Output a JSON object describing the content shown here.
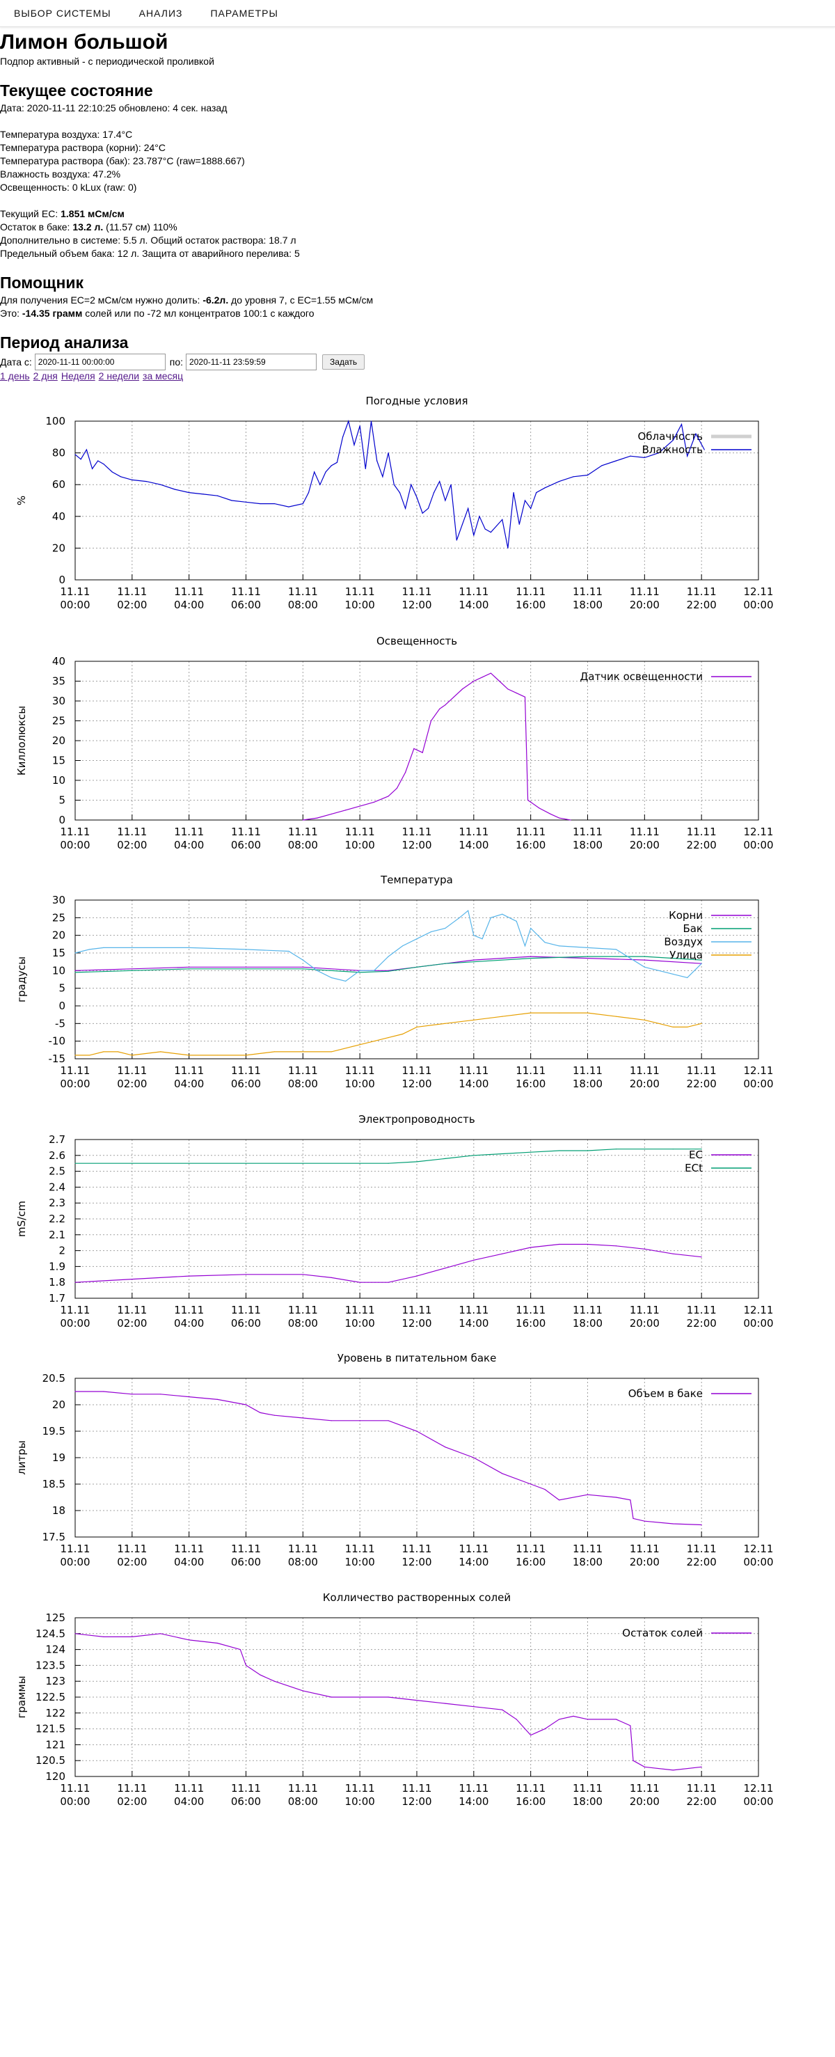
{
  "nav": {
    "items": [
      "ВЫБОР СИСТЕМЫ",
      "АНАЛИЗ",
      "ПАРАМЕТРЫ"
    ]
  },
  "header": {
    "title": "Лимон большой",
    "subtitle": "Подпор активный - с периодической проливкой"
  },
  "status": {
    "heading": "Текущее состояние",
    "date_line": "Дата: 2020-11-11 22:10:25 обновлено: 4 сек. назад",
    "air_temp": "Температура воздуха: 17.4°C",
    "root_temp": "Температура раствора (корни): 24°C",
    "tank_temp": "Температура раствора (бак): 23.787°C (raw=1888.667)",
    "humidity": "Влажность воздуха: 47.2%",
    "light": "Освещенность: 0 kLux (raw: 0)",
    "ec_prefix": "Текущий EC: ",
    "ec_value": "1.851 мСм/см",
    "tank_prefix": "Остаток в баке: ",
    "tank_value": "13.2 л.",
    "tank_suffix": " (11.57 см) 110%",
    "extra_line": "Дополнительно в системе: 5.5 л. Общий остаток раствора: 18.7 л",
    "max_line": "Предельный объем бака: 12 л. Защита от аварийного перелива: 5"
  },
  "helper": {
    "heading": "Помощник",
    "line1_prefix": "Для получения EC=2 мСм/см нужно долить: ",
    "line1_value": "-6.2л.",
    "line1_suffix": " до уровня 7, с EC=1.55 мСм/см",
    "line2_prefix": "Это: ",
    "line2_value": "-14.35 грамм",
    "line2_suffix": " солей или по -72 мл концентратов 100:1 с каждого"
  },
  "period": {
    "heading": "Период анализа",
    "from_label": "Дата с:",
    "from_value": "2020-11-11 00:00:00",
    "to_label": "по:",
    "to_value": "2020-11-11 23:59:59",
    "submit_label": "Задать",
    "links": [
      "1 день",
      "2 дня",
      "Неделя",
      "2 недели",
      "за месяц"
    ]
  },
  "colors": {
    "purple": "#9400d3",
    "green": "#009e73",
    "skyblue": "#56b4e9",
    "orange": "#e69f00",
    "blue": "#0000cd",
    "grid": "#a0a0a0"
  },
  "chart_data": [
    {
      "type": "line",
      "title": "Погодные условия",
      "ylabel": "%",
      "ylim": [
        0,
        100
      ],
      "yticks": [
        "0",
        "20",
        "40",
        "60",
        "80",
        "100"
      ],
      "xticks": [
        "11.11\n00:00",
        "11.11\n02:00",
        "11.11\n04:00",
        "11.11\n06:00",
        "11.11\n08:00",
        "11.11\n10:00",
        "11.11\n12:00",
        "11.11\n14:00",
        "11.11\n16:00",
        "11.11\n18:00",
        "11.11\n20:00",
        "11.11\n22:00",
        "12.11\n00:00"
      ],
      "xlim": [
        0,
        24
      ],
      "grid": true,
      "legend": "top-right",
      "series": [
        {
          "name": "Облачность",
          "color": "#d0d0d0",
          "x": [],
          "y": []
        },
        {
          "name": "Влажность",
          "color": "#0000cd",
          "x": [
            0,
            0.2,
            0.4,
            0.6,
            0.8,
            1,
            1.3,
            1.6,
            2,
            2.5,
            3,
            3.5,
            4,
            4.5,
            5,
            5.5,
            6,
            6.5,
            7,
            7.5,
            8,
            8.2,
            8.4,
            8.6,
            8.8,
            9,
            9.2,
            9.4,
            9.6,
            9.8,
            10,
            10.2,
            10.4,
            10.6,
            10.8,
            11,
            11.2,
            11.4,
            11.6,
            11.8,
            12,
            12.2,
            12.4,
            12.6,
            12.8,
            13,
            13.2,
            13.4,
            13.6,
            13.8,
            14,
            14.2,
            14.4,
            14.6,
            14.8,
            15,
            15.2,
            15.4,
            15.6,
            15.8,
            16,
            16.2,
            16.5,
            17,
            17.5,
            18,
            18.5,
            19,
            19.5,
            20,
            20.5,
            21,
            21.3,
            21.5,
            21.8,
            22.1
          ],
          "y": [
            79,
            76,
            82,
            70,
            75,
            73,
            68,
            65,
            63,
            62,
            60,
            57,
            55,
            54,
            53,
            50,
            49,
            48,
            48,
            46,
            48,
            55,
            68,
            60,
            68,
            72,
            74,
            90,
            100,
            85,
            97,
            70,
            100,
            75,
            65,
            80,
            60,
            55,
            45,
            60,
            52,
            42,
            45,
            55,
            62,
            50,
            60,
            25,
            35,
            45,
            28,
            40,
            32,
            30,
            34,
            38,
            20,
            55,
            35,
            50,
            45,
            55,
            58,
            62,
            65,
            66,
            72,
            75,
            78,
            77,
            80,
            88,
            98,
            78,
            92,
            82
          ]
        }
      ]
    },
    {
      "type": "line",
      "title": "Освещенность",
      "ylabel": "Киллолюксы",
      "ylim": [
        0,
        40
      ],
      "yticks": [
        "0",
        "5",
        "10",
        "15",
        "20",
        "25",
        "30",
        "35",
        "40"
      ],
      "xticks": [
        "11.11\n00:00",
        "11.11\n02:00",
        "11.11\n04:00",
        "11.11\n06:00",
        "11.11\n08:00",
        "11.11\n10:00",
        "11.11\n12:00",
        "11.11\n14:00",
        "11.11\n16:00",
        "11.11\n18:00",
        "11.11\n20:00",
        "11.11\n22:00",
        "12.11\n00:00"
      ],
      "xlim": [
        0,
        24
      ],
      "grid": true,
      "legend": "top-right",
      "series": [
        {
          "name": "Датчик освещенности",
          "color": "#9400d3",
          "x": [
            8,
            8.5,
            9,
            9.5,
            10,
            10.5,
            11,
            11.3,
            11.6,
            11.9,
            12.2,
            12.5,
            12.8,
            13,
            13.3,
            13.6,
            14,
            14.3,
            14.6,
            14.9,
            15.2,
            15.5,
            15.8,
            15.9,
            16,
            16.3,
            16.7,
            17,
            17.4
          ],
          "y": [
            0,
            0.5,
            1.5,
            2.5,
            3.5,
            4.5,
            6,
            8,
            12,
            18,
            17,
            25,
            28,
            29,
            31,
            33,
            35,
            36,
            37,
            35,
            33,
            32,
            31,
            5,
            4.5,
            3,
            1.5,
            0.5,
            0
          ]
        }
      ]
    },
    {
      "type": "line",
      "title": "Температура",
      "ylabel": "градусы",
      "ylim": [
        -15,
        30
      ],
      "yticks": [
        "-15",
        "-10",
        "-5",
        "0",
        "5",
        "10",
        "15",
        "20",
        "25",
        "30"
      ],
      "xticks": [
        "11.11\n00:00",
        "11.11\n02:00",
        "11.11\n04:00",
        "11.11\n06:00",
        "11.11\n08:00",
        "11.11\n10:00",
        "11.11\n12:00",
        "11.11\n14:00",
        "11.11\n16:00",
        "11.11\n18:00",
        "11.11\n20:00",
        "11.11\n22:00",
        "12.11\n00:00"
      ],
      "xlim": [
        0,
        24
      ],
      "grid": true,
      "legend": "top-right",
      "series": [
        {
          "name": "Корни",
          "color": "#9400d3",
          "x": [
            0,
            2,
            4,
            6,
            8,
            10,
            11,
            12,
            13,
            14,
            16,
            18,
            20,
            22
          ],
          "y": [
            10,
            10.5,
            11,
            11,
            11,
            10,
            10,
            11,
            12,
            13,
            14,
            13.5,
            13,
            12
          ]
        },
        {
          "name": "Бак",
          "color": "#009e73",
          "x": [
            0,
            2,
            4,
            6,
            8,
            10,
            11,
            12,
            13,
            14,
            16,
            18,
            20,
            22
          ],
          "y": [
            9.5,
            10,
            10.5,
            10.5,
            10.5,
            9.5,
            9.8,
            11,
            12,
            12.5,
            13.5,
            14,
            14,
            13
          ]
        },
        {
          "name": "Воздух",
          "color": "#56b4e9",
          "x": [
            0,
            0.5,
            1,
            2,
            4,
            6,
            7.5,
            8,
            8.5,
            9,
            9.5,
            10,
            10.5,
            11,
            11.5,
            12,
            12.5,
            13,
            13.5,
            13.8,
            14,
            14.3,
            14.6,
            15,
            15.5,
            15.8,
            16,
            16.5,
            17,
            18,
            19,
            20,
            20.5,
            21,
            21.5,
            22
          ],
          "y": [
            15,
            16,
            16.5,
            16.5,
            16.5,
            16,
            15.5,
            13,
            10,
            8,
            7,
            10,
            10,
            14,
            17,
            19,
            21,
            22,
            25,
            27,
            20,
            19,
            25,
            26,
            24,
            17,
            22,
            18,
            17,
            16.5,
            16,
            11,
            10,
            9,
            8,
            12
          ]
        },
        {
          "name": "Улица",
          "color": "#e69f00",
          "x": [
            0,
            0.5,
            1,
            1.5,
            2,
            3,
            4,
            5,
            6,
            7,
            8,
            9,
            10,
            10.5,
            11,
            11.5,
            12,
            13,
            14,
            15,
            16,
            17,
            18,
            19,
            20,
            20.5,
            21,
            21.5,
            22
          ],
          "y": [
            -14,
            -14,
            -13,
            -13,
            -14,
            -13,
            -14,
            -14,
            -14,
            -13,
            -13,
            -13,
            -11,
            -10,
            -9,
            -8,
            -6,
            -5,
            -4,
            -3,
            -2,
            -2,
            -2,
            -3,
            -4,
            -5,
            -6,
            -6,
            -5
          ]
        }
      ]
    },
    {
      "type": "line",
      "title": "Электропроводность",
      "ylabel": "mS/cm",
      "ylim": [
        1.7,
        2.7
      ],
      "yticks": [
        "1.7",
        "1.8",
        "1.9",
        "2",
        "2.1",
        "2.2",
        "2.3",
        "2.4",
        "2.5",
        "2.6",
        "2.7"
      ],
      "xticks": [
        "11.11\n00:00",
        "11.11\n02:00",
        "11.11\n04:00",
        "11.11\n06:00",
        "11.11\n08:00",
        "11.11\n10:00",
        "11.11\n12:00",
        "11.11\n14:00",
        "11.11\n16:00",
        "11.11\n18:00",
        "11.11\n20:00",
        "11.11\n22:00",
        "12.11\n00:00"
      ],
      "xlim": [
        0,
        24
      ],
      "grid": true,
      "legend": "top-right",
      "series": [
        {
          "name": "EC",
          "color": "#9400d3",
          "x": [
            0,
            2,
            4,
            6,
            8,
            9,
            10,
            11,
            12,
            13,
            14,
            15,
            16,
            17,
            18,
            19,
            20,
            21,
            22
          ],
          "y": [
            1.8,
            1.82,
            1.84,
            1.85,
            1.85,
            1.83,
            1.8,
            1.8,
            1.84,
            1.89,
            1.94,
            1.98,
            2.02,
            2.04,
            2.04,
            2.03,
            2.01,
            1.98,
            1.96
          ]
        },
        {
          "name": "ECt",
          "color": "#009e73",
          "x": [
            0,
            2,
            4,
            6,
            8,
            10,
            11,
            12,
            13,
            14,
            15,
            16,
            17,
            18,
            19,
            20,
            21,
            22
          ],
          "y": [
            2.55,
            2.55,
            2.55,
            2.55,
            2.55,
            2.55,
            2.55,
            2.56,
            2.58,
            2.6,
            2.61,
            2.62,
            2.63,
            2.63,
            2.64,
            2.64,
            2.64,
            2.64
          ]
        }
      ]
    },
    {
      "type": "line",
      "title": "Уровень в питательном баке",
      "ylabel": "литры",
      "ylim": [
        17.5,
        20.5
      ],
      "yticks": [
        "17.5",
        "18",
        "18.5",
        "19",
        "19.5",
        "20",
        "20.5"
      ],
      "xticks": [
        "11.11\n00:00",
        "11.11\n02:00",
        "11.11\n04:00",
        "11.11\n06:00",
        "11.11\n08:00",
        "11.11\n10:00",
        "11.11\n12:00",
        "11.11\n14:00",
        "11.11\n16:00",
        "11.11\n18:00",
        "11.11\n20:00",
        "11.11\n22:00",
        "12.11\n00:00"
      ],
      "xlim": [
        0,
        24
      ],
      "grid": true,
      "legend": "top-right",
      "series": [
        {
          "name": "Объем в баке",
          "color": "#9400d3",
          "x": [
            0,
            1,
            2,
            3,
            4,
            5,
            6,
            6.5,
            7,
            8,
            9,
            10,
            11,
            11.5,
            12,
            13,
            14,
            15,
            16,
            16.5,
            17,
            18,
            19,
            19.5,
            19.6,
            20,
            21,
            22
          ],
          "y": [
            20.25,
            20.25,
            20.2,
            20.2,
            20.15,
            20.1,
            20,
            19.85,
            19.8,
            19.75,
            19.7,
            19.7,
            19.7,
            19.6,
            19.5,
            19.2,
            19,
            18.7,
            18.5,
            18.4,
            18.2,
            18.3,
            18.25,
            18.2,
            17.85,
            17.8,
            17.75,
            17.73
          ]
        }
      ]
    },
    {
      "type": "line",
      "title": "Колличество растворенных солей",
      "ylabel": "граммы",
      "ylim": [
        120,
        125
      ],
      "yticks": [
        "120",
        "120.5",
        "121",
        "121.5",
        "122",
        "122.5",
        "123",
        "123.5",
        "124",
        "124.5",
        "125"
      ],
      "xticks": [
        "11.11\n00:00",
        "11.11\n02:00",
        "11.11\n04:00",
        "11.11\n06:00",
        "11.11\n08:00",
        "11.11\n10:00",
        "11.11\n12:00",
        "11.11\n14:00",
        "11.11\n16:00",
        "11.11\n18:00",
        "11.11\n20:00",
        "11.11\n22:00",
        "12.11\n00:00"
      ],
      "xlim": [
        0,
        24
      ],
      "grid": true,
      "legend": "top-right",
      "series": [
        {
          "name": "Остаток солей",
          "color": "#9400d3",
          "x": [
            0,
            1,
            2,
            3,
            4,
            5,
            5.8,
            6,
            6.5,
            7,
            8,
            9,
            10,
            11,
            12,
            13,
            14,
            15,
            15.5,
            16,
            16.5,
            17,
            17.5,
            18,
            19,
            19.5,
            19.6,
            20,
            21,
            22
          ],
          "y": [
            124.5,
            124.4,
            124.4,
            124.5,
            124.3,
            124.2,
            124,
            123.5,
            123.2,
            123,
            122.7,
            122.5,
            122.5,
            122.5,
            122.4,
            122.3,
            122.2,
            122.1,
            121.8,
            121.3,
            121.5,
            121.8,
            121.9,
            121.8,
            121.8,
            121.6,
            120.5,
            120.3,
            120.2,
            120.3
          ]
        }
      ]
    }
  ]
}
